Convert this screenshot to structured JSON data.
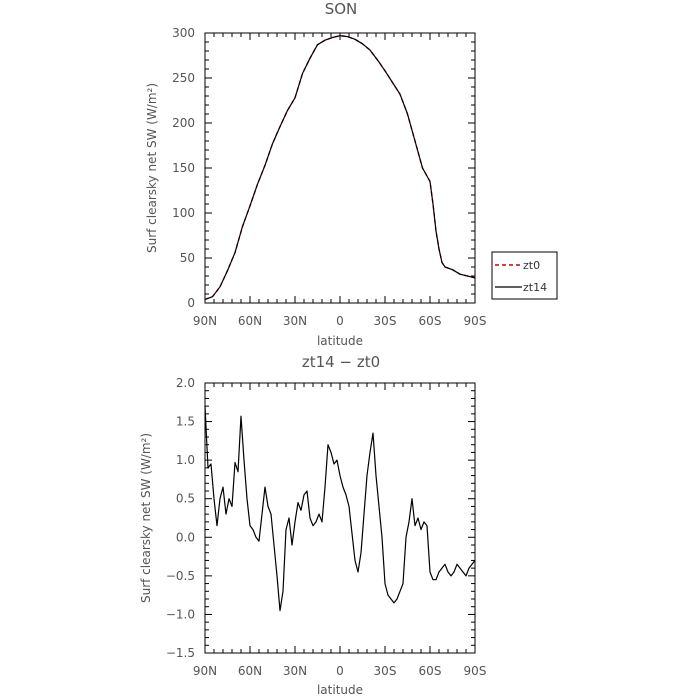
{
  "chart_data": [
    {
      "type": "line",
      "title": "SON",
      "xlabel": "latitude",
      "ylabel": "Surf clearsky net SW (W/m²)",
      "x_ticks": [
        "90N",
        "60N",
        "30N",
        "0",
        "30S",
        "60S",
        "90S"
      ],
      "y_ticks": [
        "0",
        "50",
        "100",
        "150",
        "200",
        "250",
        "300"
      ],
      "xlim": [
        -90,
        90
      ],
      "ylim": [
        0,
        300
      ],
      "legend": "right",
      "grid": false,
      "series": [
        {
          "name": "zt0",
          "color": "#cc0000",
          "dashed": true,
          "x": [
            -90,
            -85,
            -80,
            -75,
            -70,
            -65,
            -60,
            -55,
            -50,
            -45,
            -40,
            -35,
            -30,
            -25,
            -20,
            -15,
            -10,
            -5,
            0,
            5,
            10,
            15,
            20,
            25,
            30,
            35,
            40,
            45,
            50,
            55,
            60,
            62,
            64,
            66,
            68,
            70,
            75,
            80,
            85,
            90
          ],
          "y": [
            4,
            7,
            18,
            36,
            56,
            85,
            108,
            132,
            153,
            177,
            196,
            214,
            228,
            255,
            272,
            287,
            292,
            295,
            297,
            296,
            293,
            288,
            281,
            270,
            258,
            245,
            232,
            210,
            180,
            150,
            135,
            110,
            80,
            60,
            45,
            40,
            37,
            32,
            30,
            28
          ]
        },
        {
          "name": "zt14",
          "color": "#000000",
          "dashed": false,
          "x": [
            -90,
            -85,
            -80,
            -75,
            -70,
            -65,
            -60,
            -55,
            -50,
            -45,
            -40,
            -35,
            -30,
            -25,
            -20,
            -15,
            -10,
            -5,
            0,
            5,
            10,
            15,
            20,
            25,
            30,
            35,
            40,
            45,
            50,
            55,
            60,
            62,
            64,
            66,
            68,
            70,
            75,
            80,
            85,
            90
          ],
          "y": [
            4,
            7,
            18,
            36,
            56,
            85,
            108,
            132,
            153,
            177,
            196,
            214,
            228,
            255,
            272,
            287,
            292,
            295,
            297,
            296,
            293,
            288,
            281,
            270,
            258,
            245,
            232,
            210,
            180,
            150,
            135,
            110,
            80,
            60,
            45,
            40,
            37,
            32,
            30,
            28
          ]
        }
      ]
    },
    {
      "type": "line",
      "title": "zt14 − zt0",
      "xlabel": "latitude",
      "ylabel": "Surf clearsky net SW (W/m²)",
      "x_ticks": [
        "90N",
        "60N",
        "30N",
        "0",
        "30S",
        "60S",
        "90S"
      ],
      "y_ticks": [
        "−1.5",
        "−1.0",
        "−0.5",
        "0.0",
        "0.5",
        "1.0",
        "1.5",
        "2.0"
      ],
      "xlim": [
        -90,
        90
      ],
      "ylim": [
        -1.5,
        2.0
      ],
      "grid": false,
      "series": [
        {
          "color": "#000000",
          "x": [
            -90,
            -88,
            -86,
            -84,
            -82,
            -80,
            -78,
            -76,
            -74,
            -72,
            -70,
            -68,
            -66,
            -64,
            -62,
            -60,
            -58,
            -56,
            -54,
            -52,
            -50,
            -48,
            -46,
            -44,
            -42,
            -40,
            -38,
            -36,
            -34,
            -32,
            -30,
            -28,
            -26,
            -24,
            -22,
            -20,
            -18,
            -16,
            -14,
            -12,
            -10,
            -8,
            -6,
            -4,
            -2,
            0,
            2,
            4,
            6,
            8,
            10,
            12,
            14,
            16,
            18,
            20,
            22,
            24,
            26,
            28,
            30,
            32,
            34,
            36,
            38,
            40,
            42,
            44,
            46,
            48,
            50,
            52,
            54,
            56,
            58,
            60,
            62,
            64,
            66,
            68,
            70,
            72,
            74,
            76,
            78,
            80,
            82,
            84,
            86,
            88,
            90
          ],
          "y": [
            1.7,
            0.9,
            0.95,
            0.5,
            0.15,
            0.5,
            0.65,
            0.3,
            0.5,
            0.4,
            0.97,
            0.85,
            1.57,
            1.0,
            0.5,
            0.15,
            0.1,
            0.0,
            -0.05,
            0.3,
            0.65,
            0.4,
            0.3,
            -0.1,
            -0.5,
            -0.95,
            -0.7,
            0.1,
            0.25,
            -0.1,
            0.2,
            0.45,
            0.35,
            0.55,
            0.6,
            0.25,
            0.15,
            0.2,
            0.3,
            0.2,
            0.65,
            1.2,
            1.1,
            0.95,
            1.0,
            0.8,
            0.65,
            0.55,
            0.4,
            0.05,
            -0.3,
            -0.45,
            -0.2,
            0.3,
            0.8,
            1.1,
            1.35,
            0.8,
            0.4,
            0.0,
            -0.6,
            -0.75,
            -0.8,
            -0.85,
            -0.8,
            -0.7,
            -0.6,
            0.0,
            0.2,
            0.5,
            0.15,
            0.25,
            0.1,
            0.2,
            0.15,
            -0.45,
            -0.55,
            -0.55,
            -0.45,
            -0.4,
            -0.35,
            -0.45,
            -0.5,
            -0.45,
            -0.35,
            -0.4,
            -0.45,
            -0.5,
            -0.4,
            -0.35,
            -0.3
          ]
        }
      ]
    }
  ]
}
